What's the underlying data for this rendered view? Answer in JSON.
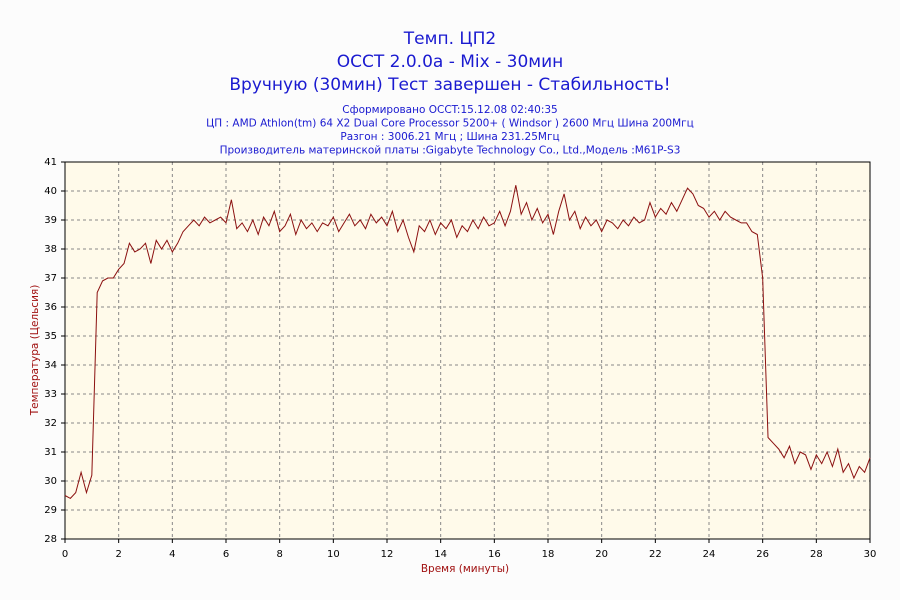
{
  "chart_data": {
    "type": "line",
    "title": "Темп. ЦП2",
    "subtitle": "OCCT 2.0.0a - Mix - 30мин",
    "status": "Вручную (30мин) Тест завершен - Стабильность!",
    "info": [
      "Сформировано OCCT:15.12.08 02:40:35",
      "ЦП : AMD Athlon(tm) 64 X2 Dual Core Processor 5200+ ( Windsor ) 2600 Mгц Шина 200Mгц",
      "Разгон : 3006.21 Mгц ; Шина 231.25Mгц",
      "Производитель материнской платы :Gigabyte Technology Co., Ltd.,Модель :M61P-S3"
    ],
    "x_label": "Время (минуты)",
    "y_label": "Температура (Цельсия)",
    "xlim": [
      0,
      30
    ],
    "ylim": [
      28,
      41
    ],
    "xticks": [
      0,
      2,
      4,
      6,
      8,
      10,
      12,
      14,
      16,
      18,
      20,
      22,
      24,
      26,
      28,
      30
    ],
    "yticks": [
      28,
      29,
      30,
      31,
      32,
      33,
      34,
      35,
      36,
      37,
      38,
      39,
      40,
      41
    ],
    "grid": true,
    "x": [
      0,
      0.2,
      0.4,
      0.6,
      0.8,
      1.0,
      1.2,
      1.4,
      1.6,
      1.8,
      2.0,
      2.2,
      2.4,
      2.6,
      2.8,
      3.0,
      3.2,
      3.4,
      3.6,
      3.8,
      4.0,
      4.2,
      4.4,
      4.6,
      4.8,
      5.0,
      5.2,
      5.4,
      5.6,
      5.8,
      6.0,
      6.2,
      6.4,
      6.6,
      6.8,
      7.0,
      7.2,
      7.4,
      7.6,
      7.8,
      8.0,
      8.2,
      8.4,
      8.6,
      8.8,
      9.0,
      9.2,
      9.4,
      9.6,
      9.8,
      10.0,
      10.2,
      10.4,
      10.6,
      10.8,
      11.0,
      11.2,
      11.4,
      11.6,
      11.8,
      12.0,
      12.2,
      12.4,
      12.6,
      12.8,
      13.0,
      13.2,
      13.4,
      13.6,
      13.8,
      14.0,
      14.2,
      14.4,
      14.6,
      14.8,
      15.0,
      15.2,
      15.4,
      15.6,
      15.8,
      16.0,
      16.2,
      16.4,
      16.6,
      16.8,
      17.0,
      17.2,
      17.4,
      17.6,
      17.8,
      18.0,
      18.2,
      18.4,
      18.6,
      18.8,
      19.0,
      19.2,
      19.4,
      19.6,
      19.8,
      20.0,
      20.2,
      20.4,
      20.6,
      20.8,
      21.0,
      21.2,
      21.4,
      21.6,
      21.8,
      22.0,
      22.2,
      22.4,
      22.6,
      22.8,
      23.0,
      23.2,
      23.4,
      23.6,
      23.8,
      24.0,
      24.2,
      24.4,
      24.6,
      24.8,
      25.0,
      25.2,
      25.4,
      25.6,
      25.8,
      26.0,
      26.2,
      26.4,
      26.6,
      26.8,
      27.0,
      27.2,
      27.4,
      27.6,
      27.8,
      28.0,
      28.2,
      28.4,
      28.6,
      28.8,
      29.0,
      29.2,
      29.4,
      29.6,
      29.8,
      30.0
    ],
    "series": [
      {
        "name": "ЦП2",
        "color": "#8b1010",
        "values": [
          29.5,
          29.4,
          29.6,
          30.3,
          29.6,
          30.2,
          36.5,
          36.9,
          37.0,
          37.0,
          37.3,
          37.5,
          38.2,
          37.9,
          38.0,
          38.2,
          37.5,
          38.3,
          38.0,
          38.3,
          37.9,
          38.2,
          38.6,
          38.8,
          39.0,
          38.8,
          39.1,
          38.9,
          39.0,
          39.1,
          38.9,
          39.7,
          38.7,
          38.9,
          38.6,
          39.0,
          38.5,
          39.1,
          38.8,
          39.3,
          38.6,
          38.8,
          39.2,
          38.5,
          39.0,
          38.7,
          38.9,
          38.6,
          38.9,
          38.8,
          39.1,
          38.6,
          38.9,
          39.2,
          38.8,
          39.0,
          38.7,
          39.2,
          38.9,
          39.1,
          38.8,
          39.3,
          38.6,
          39.0,
          38.4,
          37.9,
          38.8,
          38.6,
          39.0,
          38.5,
          38.9,
          38.7,
          39.0,
          38.4,
          38.8,
          38.6,
          39.0,
          38.7,
          39.1,
          38.8,
          38.9,
          39.3,
          38.8,
          39.3,
          40.2,
          39.2,
          39.6,
          39.0,
          39.4,
          38.9,
          39.2,
          38.5,
          39.3,
          39.9,
          39.0,
          39.3,
          38.7,
          39.1,
          38.8,
          39.0,
          38.6,
          39.0,
          38.9,
          38.7,
          39.0,
          38.8,
          39.1,
          38.9,
          39.0,
          39.6,
          39.1,
          39.4,
          39.2,
          39.6,
          39.3,
          39.7,
          40.1,
          39.9,
          39.5,
          39.4,
          39.1,
          39.3,
          39.0,
          39.3,
          39.1,
          39.0,
          38.9,
          38.9,
          38.6,
          38.5,
          37.0,
          31.5,
          31.3,
          31.1,
          30.8,
          31.2,
          30.6,
          31.0,
          30.9,
          30.4,
          30.9,
          30.6,
          31.0,
          30.5,
          31.1,
          30.3,
          30.6,
          30.1,
          30.5,
          30.3,
          30.8
        ]
      }
    ]
  }
}
